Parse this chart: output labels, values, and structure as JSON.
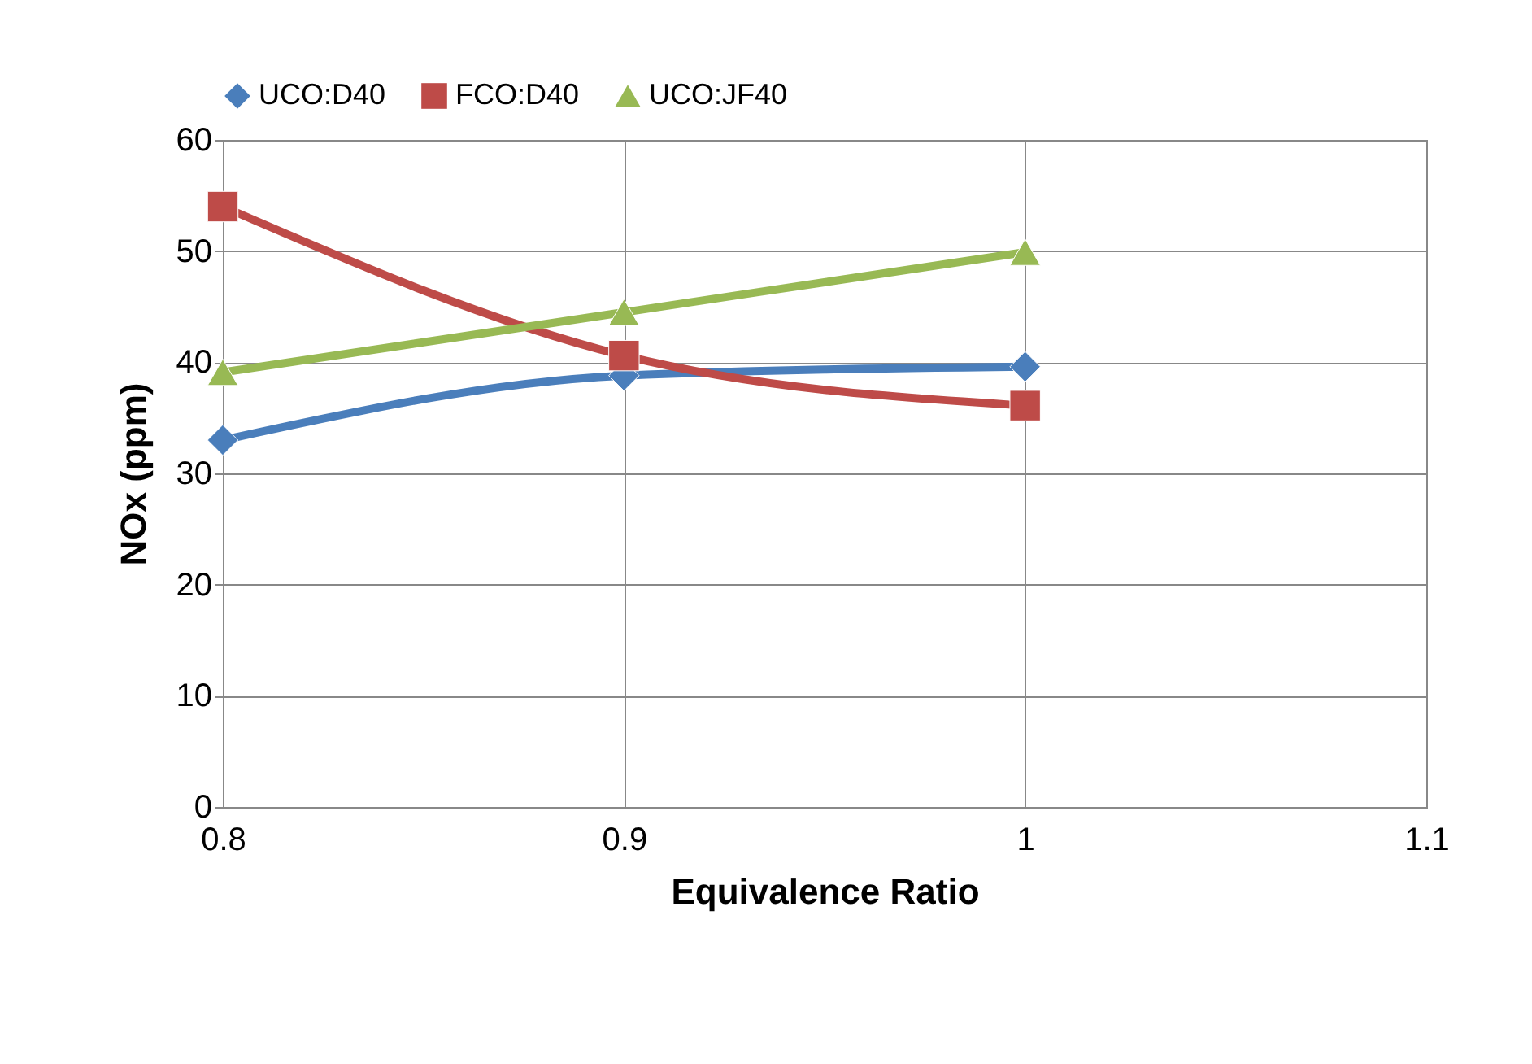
{
  "chart_data": {
    "type": "line",
    "xlabel": "Equivalence Ratio",
    "ylabel": "NOx (ppm)",
    "x": [
      0.8,
      0.9,
      1
    ],
    "series": [
      {
        "name": "UCO:D40",
        "color": "#4a7ebb",
        "marker": "diamond",
        "values": [
          33.0,
          38.8,
          39.6
        ]
      },
      {
        "name": "FCO:D40",
        "color": "#be4b48",
        "marker": "square",
        "values": [
          54.0,
          40.6,
          36.1
        ]
      },
      {
        "name": "UCO:JF40",
        "color": "#98b954",
        "marker": "triangle",
        "values": [
          39.1,
          44.5,
          49.9
        ]
      }
    ],
    "xlim": [
      0.8,
      1.1
    ],
    "xticks": [
      0.8,
      0.9,
      1,
      1.1
    ],
    "ylim": [
      0,
      60
    ],
    "yticks": [
      0,
      10,
      20,
      30,
      40,
      50,
      60
    ],
    "grid": true,
    "legend": "top",
    "line_style": "solid"
  }
}
